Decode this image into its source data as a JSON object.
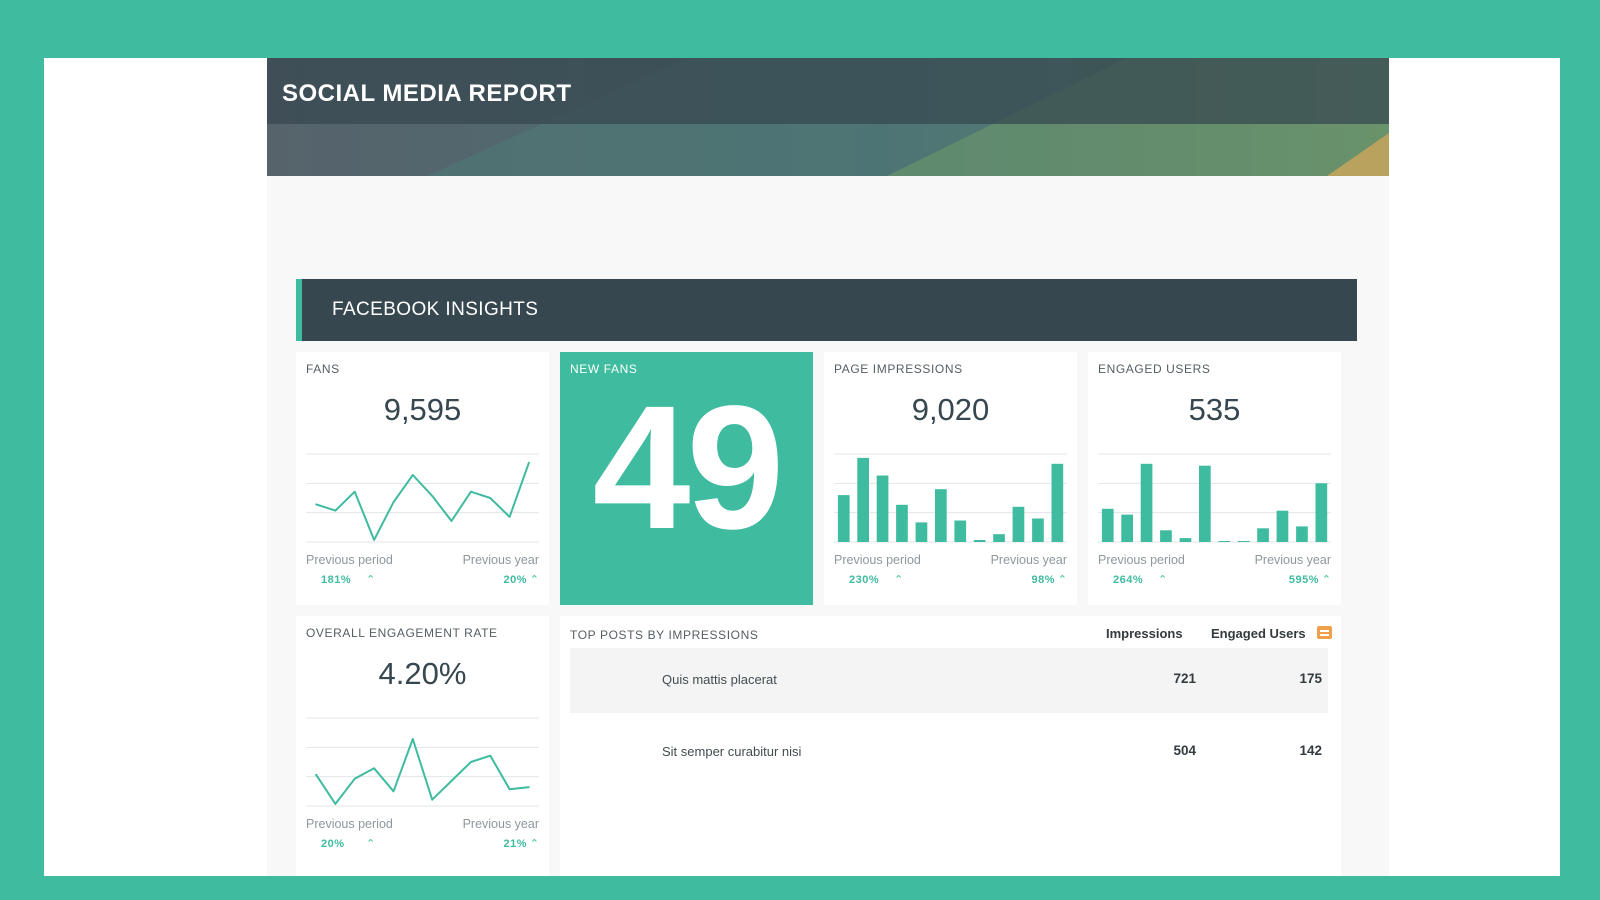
{
  "report_title": "SOCIAL MEDIA REPORT",
  "section_title": "FACEBOOK INSIGHTS",
  "colors": {
    "accent": "#3fbb9f",
    "dark": "#37474f",
    "highlight": "#f0a04b"
  },
  "comparison": {
    "left_label": "Previous period",
    "right_label": "Previous year",
    "trend_icon": "chevron-up-icon"
  },
  "cards": {
    "fans": {
      "label": "FANS",
      "value": "9,595",
      "previous_period": "181%",
      "previous_year": "20%",
      "chart_data": {
        "type": "line",
        "values": [
          18,
          15,
          24,
          1,
          19,
          32,
          22,
          10,
          24,
          21,
          12,
          38
        ],
        "ylim": [
          0,
          42
        ]
      }
    },
    "new_fans": {
      "label": "NEW FANS",
      "value": "49"
    },
    "page_impressions": {
      "label": "PAGE IMPRESSIONS",
      "value": "9,020",
      "previous_period": "230%",
      "previous_year": "98%",
      "chart_data": {
        "type": "bar",
        "values": [
          24,
          43,
          34,
          19,
          10,
          27,
          11,
          1,
          4,
          18,
          12,
          40
        ],
        "ylim": [
          0,
          45
        ]
      }
    },
    "engaged_users": {
      "label": "ENGAGED USERS",
      "value": "535",
      "previous_period": "264%",
      "previous_year": "595%",
      "chart_data": {
        "type": "bar",
        "values": [
          17,
          14,
          40,
          6,
          2,
          39,
          0.5,
          0.5,
          7,
          16,
          8,
          30
        ],
        "ylim": [
          0,
          45
        ]
      }
    },
    "engagement_rate": {
      "label": "OVERALL ENGAGEMENT RATE",
      "value": "4.20%",
      "previous_period": "20%",
      "previous_year": "21%",
      "chart_data": {
        "type": "line",
        "values": [
          15,
          1,
          13,
          18,
          7,
          32,
          3,
          12,
          21,
          24,
          8,
          9
        ],
        "ylim": [
          0,
          42
        ]
      }
    }
  },
  "top_posts": {
    "label": "TOP POSTS BY IMPRESSIONS",
    "col_impressions": "Impressions",
    "col_engaged": "Engaged Users",
    "export_icon": "export-icon",
    "rows": [
      {
        "title": "Quis mattis placerat",
        "impressions": "721",
        "engaged": "175",
        "thumb": "red-tree-image"
      },
      {
        "title": "Sit semper curabitur nisi",
        "impressions": "504",
        "engaged": "142",
        "thumb": "leaves-image"
      }
    ]
  }
}
